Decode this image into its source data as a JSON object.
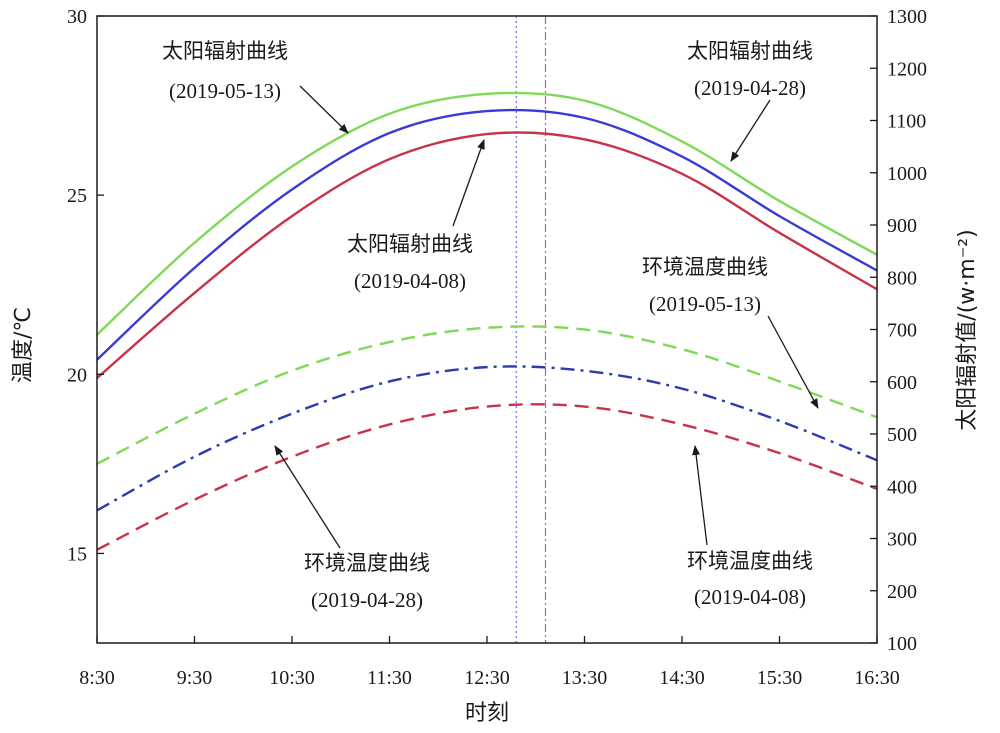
{
  "chart_data": {
    "type": "line",
    "xlabel": "时刻",
    "ylabel_left": "温度/℃",
    "ylabel_right": "太阳辐射值/(w·m⁻²)",
    "x_categories": [
      "8:30",
      "9:30",
      "10:30",
      "11:30",
      "12:30",
      "13:30",
      "14:30",
      "15:30",
      "16:30"
    ],
    "x_numeric": [
      8.5,
      9.5,
      10.5,
      11.5,
      12.5,
      13.5,
      14.5,
      15.5,
      16.5
    ],
    "ylim_left": [
      12.5,
      30
    ],
    "yticks_left": [
      15,
      20,
      25,
      30
    ],
    "ylim_right": [
      100,
      1300
    ],
    "yticks_right": [
      100,
      200,
      300,
      400,
      500,
      600,
      700,
      800,
      900,
      1000,
      1100,
      1200,
      1300
    ],
    "grid": false,
    "legend": "none",
    "radiation_series": [
      {
        "date": "2019-05-13",
        "color": "#7ed957",
        "style": "solid",
        "axis": "right",
        "x": [
          8.5,
          9.5,
          10.5,
          11.5,
          12.5,
          13.5,
          14.5,
          15.5,
          16.5
        ],
        "y": [
          690,
          866,
          1012,
          1113,
          1151,
          1138,
          1060,
          946,
          843
        ]
      },
      {
        "date": "2019-04-28",
        "color": "#3a3ad6",
        "style": "solid",
        "axis": "right",
        "x": [
          8.5,
          9.5,
          10.5,
          11.5,
          12.5,
          13.5,
          14.5,
          15.5,
          16.5
        ],
        "y": [
          642,
          818,
          968,
          1076,
          1118,
          1105,
          1031,
          917,
          813
        ]
      },
      {
        "date": "2019-04-08",
        "color": "#c8334a",
        "style": "solid",
        "axis": "right",
        "x": [
          8.5,
          9.5,
          10.5,
          11.5,
          12.5,
          13.5,
          14.5,
          15.5,
          16.5
        ],
        "y": [
          607,
          770,
          917,
          1026,
          1074,
          1064,
          998,
          885,
          777
        ]
      }
    ],
    "temperature_series": [
      {
        "date": "2019-05-13",
        "color": "#7ed957",
        "style": "dashed",
        "axis": "left",
        "x": [
          8.5,
          9.5,
          10.5,
          11.5,
          12.5,
          13.5,
          14.5,
          15.5,
          16.5
        ],
        "y": [
          17.5,
          18.9,
          20.1,
          20.9,
          21.3,
          21.25,
          20.7,
          19.8,
          18.8
        ]
      },
      {
        "date": "2019-04-28",
        "color": "#2a3bb0",
        "style": "dashdot",
        "axis": "left",
        "x": [
          8.5,
          9.5,
          10.5,
          11.5,
          12.5,
          13.5,
          14.5,
          15.5,
          16.5
        ],
        "y": [
          16.2,
          17.7,
          18.9,
          19.8,
          20.2,
          20.1,
          19.6,
          18.7,
          17.6
        ]
      },
      {
        "date": "2019-04-08",
        "color": "#c8334a",
        "style": "dashed",
        "axis": "left",
        "x": [
          8.5,
          9.5,
          10.5,
          11.5,
          12.5,
          13.5,
          14.5,
          15.5,
          16.5
        ],
        "y": [
          15.1,
          16.5,
          17.7,
          18.6,
          19.1,
          19.1,
          18.6,
          17.8,
          16.8
        ]
      }
    ],
    "reference_lines": [
      {
        "x": 12.8,
        "color": "#6a6ad8",
        "style": "dotted"
      },
      {
        "x": 13.1,
        "color": "#c25aa0",
        "style": "dashdot"
      }
    ],
    "annotations": [
      {
        "title": "太阳辐射曲线",
        "date": "(2019-05-13)"
      },
      {
        "title": "太阳辐射曲线",
        "date": "(2019-04-28)"
      },
      {
        "title": "太阳辐射曲线",
        "date": "(2019-04-08)"
      },
      {
        "title": "环境温度曲线",
        "date": "(2019-05-13)"
      },
      {
        "title": "环境温度曲线",
        "date": "(2019-04-28)"
      },
      {
        "title": "环境温度曲线",
        "date": "(2019-04-08)"
      }
    ]
  }
}
